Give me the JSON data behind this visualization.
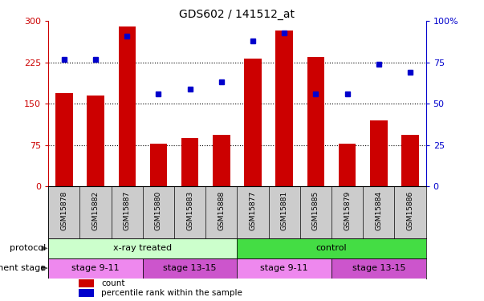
{
  "title": "GDS602 / 141512_at",
  "samples": [
    "GSM15878",
    "GSM15882",
    "GSM15887",
    "GSM15880",
    "GSM15883",
    "GSM15888",
    "GSM15877",
    "GSM15881",
    "GSM15885",
    "GSM15879",
    "GSM15884",
    "GSM15886"
  ],
  "counts": [
    170,
    165,
    290,
    78,
    88,
    93,
    232,
    283,
    235,
    78,
    120,
    93
  ],
  "percentile": [
    77,
    77,
    91,
    56,
    59,
    63,
    88,
    93,
    56,
    56,
    74,
    69
  ],
  "ylim_left": [
    0,
    300
  ],
  "ylim_right": [
    0,
    100
  ],
  "yticks_left": [
    0,
    75,
    150,
    225,
    300
  ],
  "yticks_right": [
    0,
    25,
    50,
    75,
    100
  ],
  "bar_color": "#cc0000",
  "dot_color": "#0000cc",
  "protocol_groups": [
    {
      "label": "x-ray treated",
      "start": 0,
      "end": 6,
      "color": "#ccffcc"
    },
    {
      "label": "control",
      "start": 6,
      "end": 12,
      "color": "#44dd44"
    }
  ],
  "stage_groups": [
    {
      "label": "stage 9-11",
      "start": 0,
      "end": 3,
      "color": "#ee88ee"
    },
    {
      "label": "stage 13-15",
      "start": 3,
      "end": 6,
      "color": "#cc55cc"
    },
    {
      "label": "stage 9-11",
      "start": 6,
      "end": 9,
      "color": "#ee88ee"
    },
    {
      "label": "stage 13-15",
      "start": 9,
      "end": 12,
      "color": "#cc55cc"
    }
  ],
  "protocol_label": "protocol",
  "stage_label": "development stage",
  "legend_bar": "count",
  "legend_dot": "percentile rank within the sample",
  "left_axis_color": "#cc0000",
  "right_axis_color": "#0000cc",
  "tick_bg_color": "#cccccc"
}
